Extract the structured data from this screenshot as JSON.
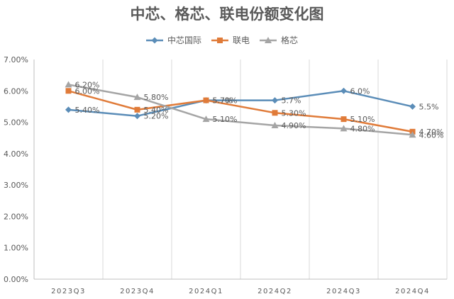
{
  "chart_data": {
    "type": "line",
    "title": "中芯、格芯、联电份额变化图",
    "categories": [
      "2023Q3",
      "2023Q4",
      "2024Q1",
      "2024Q2",
      "2024Q3",
      "2024Q4"
    ],
    "y_ticks": [
      "0.00%",
      "1.00%",
      "2.00%",
      "3.00%",
      "4.00%",
      "5.00%",
      "6.00%",
      "7.00%"
    ],
    "ylim": [
      0,
      7
    ],
    "legend_position": "top",
    "grid": "vertical",
    "series": [
      {
        "name": "中芯国际",
        "color": "#5b8db8",
        "marker": "diamond",
        "values": [
          5.4,
          5.2,
          5.7,
          5.7,
          6.0,
          5.5
        ],
        "labels": [
          "5.40%",
          "5.20%",
          "5.7%",
          "5.7%",
          "6.0%",
          "5.5%"
        ]
      },
      {
        "name": "联电",
        "color": "#e07b39",
        "marker": "square",
        "values": [
          6.0,
          5.4,
          5.7,
          5.3,
          5.1,
          4.7
        ],
        "labels": [
          "6.00%",
          "5.40%",
          "5.70%",
          "5.30%",
          "5.10%",
          "4.70%"
        ]
      },
      {
        "name": "格芯",
        "color": "#a5a5a5",
        "marker": "triangle",
        "values": [
          6.2,
          5.8,
          5.1,
          4.9,
          4.8,
          4.6
        ],
        "labels": [
          "6.20%",
          "5.80%",
          "5.10%",
          "4.90%",
          "4.80%",
          "4.60%"
        ]
      }
    ]
  }
}
